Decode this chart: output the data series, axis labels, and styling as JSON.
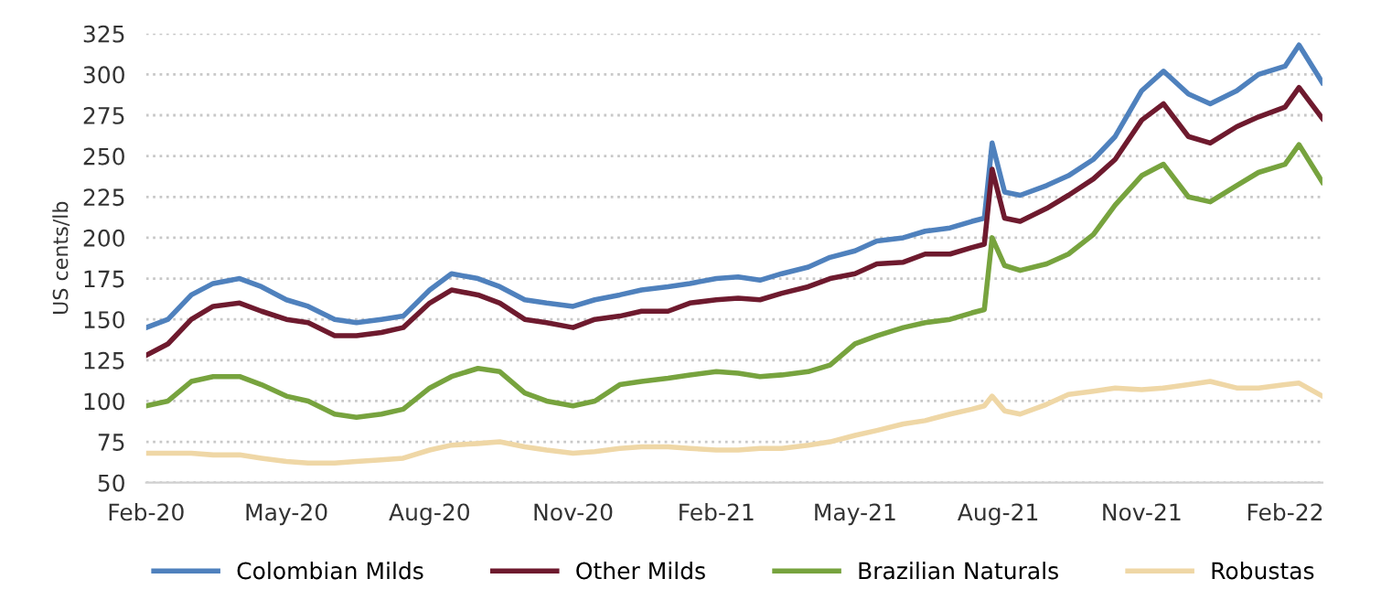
{
  "chart_data": {
    "type": "line",
    "ylabel": "US cents/lb",
    "x": [
      "2020-02-01",
      "2020-02-15",
      "2020-03-01",
      "2020-03-15",
      "2020-04-01",
      "2020-04-15",
      "2020-05-01",
      "2020-05-15",
      "2020-06-01",
      "2020-06-15",
      "2020-07-01",
      "2020-07-15",
      "2020-08-01",
      "2020-08-15",
      "2020-09-01",
      "2020-09-15",
      "2020-10-01",
      "2020-10-15",
      "2020-11-01",
      "2020-11-15",
      "2020-12-01",
      "2020-12-15",
      "2021-01-01",
      "2021-01-15",
      "2021-02-01",
      "2021-02-15",
      "2021-03-01",
      "2021-03-15",
      "2021-04-01",
      "2021-04-15",
      "2021-05-01",
      "2021-05-15",
      "2021-06-01",
      "2021-06-15",
      "2021-07-01",
      "2021-07-15",
      "2021-07-23",
      "2021-07-28",
      "2021-08-05",
      "2021-08-15",
      "2021-09-01",
      "2021-09-15",
      "2021-10-01",
      "2021-10-15",
      "2021-11-01",
      "2021-11-15",
      "2021-12-01",
      "2021-12-15",
      "2022-01-01",
      "2022-01-15",
      "2022-02-01",
      "2022-02-10",
      "2022-02-25"
    ],
    "series": [
      {
        "name": "Colombian Milds",
        "color": "#4f81bd",
        "values": [
          145,
          150,
          165,
          172,
          175,
          170,
          162,
          158,
          150,
          148,
          150,
          152,
          168,
          178,
          175,
          170,
          162,
          160,
          158,
          162,
          165,
          168,
          170,
          172,
          175,
          176,
          174,
          178,
          182,
          188,
          192,
          198,
          200,
          204,
          206,
          210,
          212,
          258,
          228,
          226,
          232,
          238,
          248,
          262,
          290,
          302,
          288,
          282,
          290,
          300,
          305,
          318,
          295
        ]
      },
      {
        "name": "Other Milds",
        "color": "#6e1a2e",
        "values": [
          128,
          135,
          150,
          158,
          160,
          155,
          150,
          148,
          140,
          140,
          142,
          145,
          160,
          168,
          165,
          160,
          150,
          148,
          145,
          150,
          152,
          155,
          155,
          160,
          162,
          163,
          162,
          166,
          170,
          175,
          178,
          184,
          185,
          190,
          190,
          194,
          196,
          242,
          212,
          210,
          218,
          226,
          236,
          248,
          272,
          282,
          262,
          258,
          268,
          274,
          280,
          292,
          273
        ]
      },
      {
        "name": "Brazilian Naturals",
        "color": "#77a33e",
        "values": [
          97,
          100,
          112,
          115,
          115,
          110,
          103,
          100,
          92,
          90,
          92,
          95,
          108,
          115,
          120,
          118,
          105,
          100,
          97,
          100,
          110,
          112,
          114,
          116,
          118,
          117,
          115,
          116,
          118,
          122,
          135,
          140,
          145,
          148,
          150,
          154,
          156,
          200,
          183,
          180,
          184,
          190,
          202,
          220,
          238,
          245,
          225,
          222,
          232,
          240,
          245,
          257,
          234
        ]
      },
      {
        "name": "Robustas",
        "color": "#efd7a6",
        "values": [
          68,
          68,
          68,
          67,
          67,
          65,
          63,
          62,
          62,
          63,
          64,
          65,
          70,
          73,
          74,
          75,
          72,
          70,
          68,
          69,
          71,
          72,
          72,
          71,
          70,
          70,
          71,
          71,
          73,
          75,
          79,
          82,
          86,
          88,
          92,
          95,
          97,
          103,
          94,
          92,
          98,
          104,
          106,
          108,
          107,
          108,
          110,
          112,
          108,
          108,
          110,
          111,
          103
        ]
      }
    ],
    "xlim": [
      "2020-02-01",
      "2022-02-25"
    ],
    "xticks": [
      {
        "value": "2020-02-01",
        "label": "Feb-20"
      },
      {
        "value": "2020-05-01",
        "label": "May-20"
      },
      {
        "value": "2020-08-01",
        "label": "Aug-20"
      },
      {
        "value": "2020-11-01",
        "label": "Nov-20"
      },
      {
        "value": "2021-02-01",
        "label": "Feb-21"
      },
      {
        "value": "2021-05-01",
        "label": "May-21"
      },
      {
        "value": "2021-08-01",
        "label": "Aug-21"
      },
      {
        "value": "2021-11-01",
        "label": "Nov-21"
      },
      {
        "value": "2022-02-01",
        "label": "Feb-22"
      }
    ],
    "ylim": [
      50,
      325
    ],
    "yticks": [
      50,
      75,
      100,
      125,
      150,
      175,
      200,
      225,
      250,
      275,
      300,
      325
    ],
    "grid": "y",
    "legend": "bottom",
    "marker": "none",
    "line_style": "solid"
  }
}
